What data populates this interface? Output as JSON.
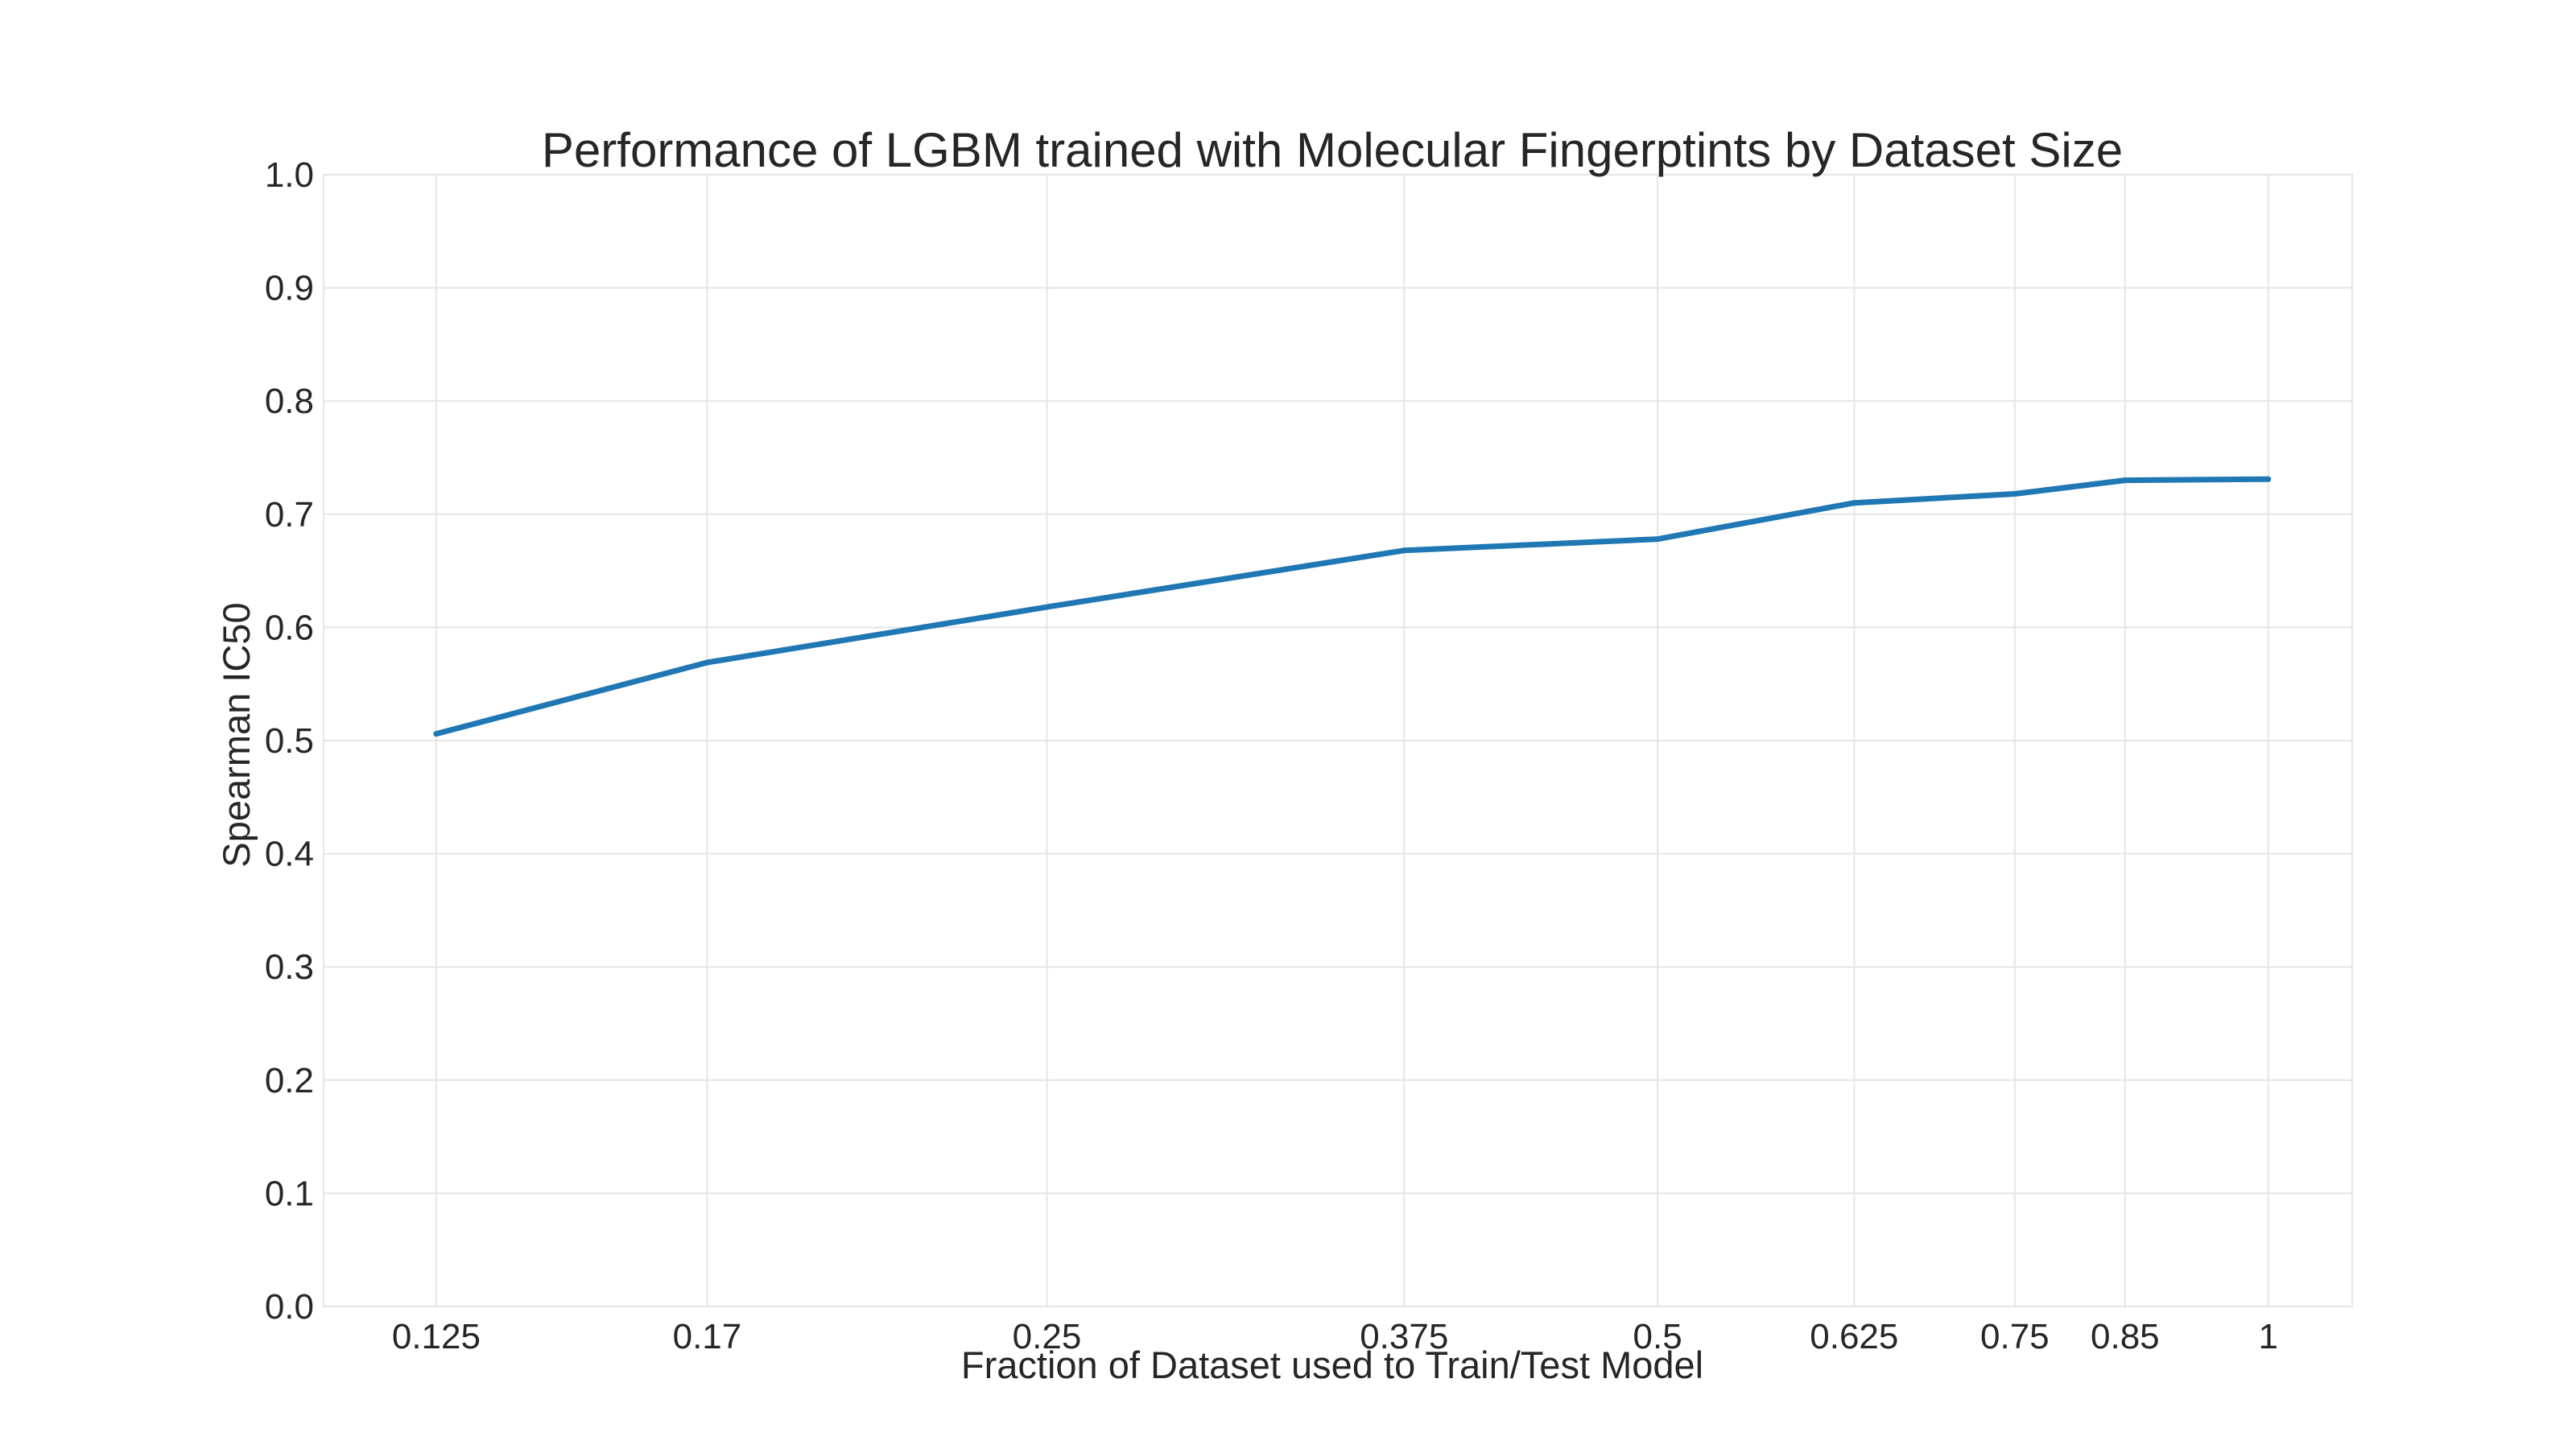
{
  "chart_data": {
    "type": "line",
    "title": "Performance of LGBM trained with Molecular Fingerptints by Dataset Size",
    "xlabel": "Fraction of Dataset used to Train/Test Model",
    "ylabel": "Spearman IC50",
    "x_scale": "log",
    "xlim": [
      0.11,
      1.1
    ],
    "ylim": [
      0.0,
      1.0
    ],
    "grid": true,
    "x_ticks": [
      {
        "value": 0.125,
        "label": "0.125"
      },
      {
        "value": 0.17,
        "label": "0.17"
      },
      {
        "value": 0.25,
        "label": "0.25"
      },
      {
        "value": 0.375,
        "label": "0.375"
      },
      {
        "value": 0.5,
        "label": "0.5"
      },
      {
        "value": 0.625,
        "label": "0.625"
      },
      {
        "value": 0.75,
        "label": "0.75"
      },
      {
        "value": 0.85,
        "label": "0.85"
      },
      {
        "value": 1,
        "label": "1"
      }
    ],
    "y_ticks": [
      {
        "value": 0.0,
        "label": "0.0"
      },
      {
        "value": 0.1,
        "label": "0.1"
      },
      {
        "value": 0.2,
        "label": "0.2"
      },
      {
        "value": 0.3,
        "label": "0.3"
      },
      {
        "value": 0.4,
        "label": "0.4"
      },
      {
        "value": 0.5,
        "label": "0.5"
      },
      {
        "value": 0.6,
        "label": "0.6"
      },
      {
        "value": 0.7,
        "label": "0.7"
      },
      {
        "value": 0.8,
        "label": "0.8"
      },
      {
        "value": 0.9,
        "label": "0.9"
      },
      {
        "value": 1.0,
        "label": "1.0"
      }
    ],
    "series": [
      {
        "color": "#1f77b4",
        "x": [
          0.125,
          0.17,
          0.25,
          0.375,
          0.5,
          0.625,
          0.75,
          0.85,
          1
        ],
        "y": [
          0.506,
          0.569,
          0.618,
          0.668,
          0.678,
          0.71,
          0.718,
          0.73,
          0.731
        ]
      }
    ],
    "colors": {
      "grid": "#e5e5e5",
      "text": "#262626",
      "background": "#ffffff"
    }
  }
}
